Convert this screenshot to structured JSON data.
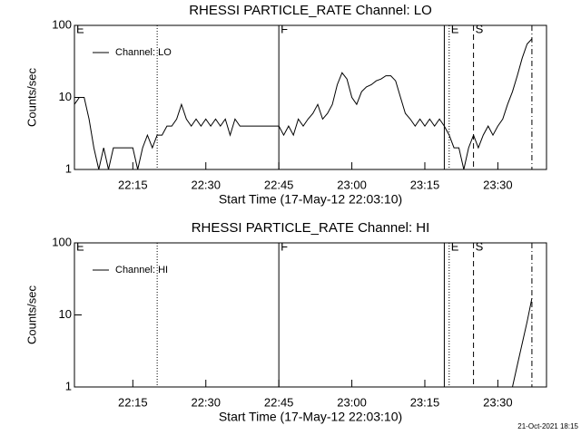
{
  "chart_data": [
    {
      "type": "line",
      "title": "RHESSI PARTICLE_RATE Channel: LO",
      "ylabel": "Counts/sec",
      "xlabel": "Start Time (17-May-12 22:03:10)",
      "log_y": true,
      "ylim": [
        1,
        100
      ],
      "yticks": [
        1,
        10,
        100
      ],
      "xlim": [
        "22:03",
        "23:40"
      ],
      "xticks": [
        "22:15",
        "22:30",
        "22:45",
        "23:00",
        "23:15",
        "23:30"
      ],
      "legend": "top-left",
      "color": "#000000",
      "markers": [
        {
          "x": "22:03",
          "label": "E",
          "style": "solid"
        },
        {
          "x": "22:20",
          "style": "dotted"
        },
        {
          "x": "22:45",
          "label": "F",
          "style": "solid"
        },
        {
          "x": "23:19",
          "style": "solid"
        },
        {
          "x": "23:20",
          "label": "E",
          "style": "dotted"
        },
        {
          "x": "23:25",
          "label": "S",
          "style": "dashed"
        },
        {
          "x": "23:37",
          "style": "dashdot"
        }
      ],
      "x": [
        "22:03",
        "22:04",
        "22:05",
        "22:06",
        "22:07",
        "22:08",
        "22:09",
        "22:10",
        "22:11",
        "22:12",
        "22:13",
        "22:14",
        "22:15",
        "22:16",
        "22:17",
        "22:18",
        "22:19",
        "22:20",
        "22:21",
        "22:22",
        "22:23",
        "22:24",
        "22:25",
        "22:26",
        "22:27",
        "22:28",
        "22:29",
        "22:30",
        "22:31",
        "22:32",
        "22:33",
        "22:34",
        "22:35",
        "22:36",
        "22:37",
        "22:38",
        "22:39",
        "22:40",
        "22:41",
        "22:42",
        "22:43",
        "22:44",
        "22:45",
        "22:46",
        "22:47",
        "22:48",
        "22:49",
        "22:50",
        "22:51",
        "22:52",
        "22:53",
        "22:54",
        "22:55",
        "22:56",
        "22:57",
        "22:58",
        "22:59",
        "23:00",
        "23:01",
        "23:02",
        "23:03",
        "23:04",
        "23:05",
        "23:06",
        "23:07",
        "23:08",
        "23:09",
        "23:10",
        "23:11",
        "23:12",
        "23:13",
        "23:14",
        "23:15",
        "23:16",
        "23:17",
        "23:18",
        "23:19",
        "23:20",
        "23:21",
        "23:22",
        "23:23",
        "23:24",
        "23:25",
        "23:26",
        "23:27",
        "23:28",
        "23:29",
        "23:30",
        "23:31",
        "23:32",
        "23:33",
        "23:34",
        "23:35",
        "23:36",
        "23:37"
      ],
      "series": [
        {
          "name": "Channel: LO",
          "color": "#000000",
          "values": [
            8,
            10,
            10,
            5,
            2,
            1,
            2,
            1,
            2,
            2,
            2,
            2,
            2,
            1,
            2,
            3,
            2,
            3,
            3,
            4,
            4,
            5,
            8,
            5,
            4,
            5,
            4,
            5,
            4,
            5,
            4,
            5,
            3,
            5,
            4,
            4,
            4,
            4,
            4,
            4,
            4,
            4,
            4,
            3,
            4,
            3,
            5,
            4,
            5,
            6,
            8,
            5,
            6,
            8,
            15,
            22,
            18,
            10,
            8,
            12,
            14,
            15,
            17,
            18,
            20,
            20,
            17,
            10,
            6,
            5,
            4,
            5,
            4,
            5,
            4,
            5,
            4,
            3,
            2,
            2,
            1,
            2,
            3,
            2,
            3,
            4,
            3,
            4,
            5,
            8,
            12,
            20,
            35,
            55,
            65
          ]
        }
      ]
    },
    {
      "type": "line",
      "title": "RHESSI PARTICLE_RATE Channel: HI",
      "ylabel": "Counts/sec",
      "xlabel": "Start Time (17-May-12 22:03:10)",
      "log_y": true,
      "ylim": [
        1,
        100
      ],
      "yticks": [
        1,
        10,
        100
      ],
      "xlim": [
        "22:03",
        "23:40"
      ],
      "xticks": [
        "22:15",
        "22:30",
        "22:45",
        "23:00",
        "23:15",
        "23:30"
      ],
      "legend": "top-left",
      "color": "#000000",
      "markers": [
        {
          "x": "22:03",
          "label": "E",
          "style": "solid"
        },
        {
          "x": "22:20",
          "style": "dotted"
        },
        {
          "x": "22:45",
          "label": "F",
          "style": "solid"
        },
        {
          "x": "23:19",
          "style": "solid"
        },
        {
          "x": "23:20",
          "label": "E",
          "style": "dotted"
        },
        {
          "x": "23:25",
          "label": "S",
          "style": "dashed"
        },
        {
          "x": "23:37",
          "style": "dashdot"
        }
      ],
      "x": [
        "23:33",
        "23:34",
        "23:35",
        "23:36",
        "23:37"
      ],
      "series": [
        {
          "name": "Channel: HI",
          "color": "#000000",
          "values": [
            1,
            2,
            4,
            8,
            17
          ]
        }
      ]
    }
  ],
  "footer": "21-Oct-2021 18:15"
}
